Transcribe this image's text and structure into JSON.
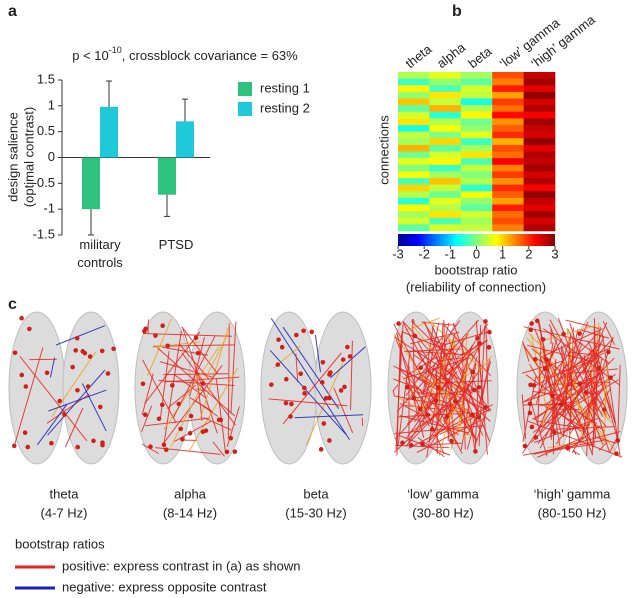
{
  "chart_data": [
    {
      "type": "bar",
      "panel": "a",
      "title": {
        "prefix": "p < 10",
        "exponent": "-10",
        "suffix": ", crossblock covariance = 63%"
      },
      "ylabel": [
        "design salience",
        "(optimal contrast)"
      ],
      "categories": [
        "military controls",
        "PTSD"
      ],
      "series": [
        {
          "name": "resting 1",
          "color": "#2ec27e",
          "values": [
            -1.0,
            -0.72
          ],
          "errors": [
            0.5,
            0.42
          ]
        },
        {
          "name": "resting 2",
          "color": "#1ec9d9",
          "values": [
            0.98,
            0.7
          ],
          "errors": [
            0.5,
            0.43
          ]
        }
      ],
      "ylim": [
        -1.5,
        1.5
      ],
      "yticks": [
        -1.5,
        -1,
        -0.5,
        0,
        0.5,
        1,
        1.5
      ]
    },
    {
      "type": "heatmap",
      "panel": "b",
      "categories": [
        "theta",
        "alpha",
        "beta",
        "‘low’ gamma",
        "‘high’ gamma"
      ],
      "ylabel": "connections",
      "values": [
        [
          0.3,
          0.6,
          0.2,
          1.8,
          2.6
        ],
        [
          -0.4,
          0.1,
          -0.2,
          1.5,
          2.8
        ],
        [
          0.8,
          -0.3,
          0.5,
          2.1,
          2.4
        ],
        [
          0.1,
          0.9,
          0.4,
          1.3,
          2.9
        ],
        [
          1.1,
          0.4,
          -0.6,
          1.9,
          2.5
        ],
        [
          -0.2,
          1.2,
          0.3,
          1.6,
          2.7
        ],
        [
          0.5,
          -0.5,
          0.8,
          2.2,
          2.3
        ],
        [
          0.9,
          0.3,
          -0.1,
          1.4,
          2.8
        ],
        [
          -0.6,
          0.7,
          0.1,
          1.7,
          2.6
        ],
        [
          0.4,
          0.0,
          0.6,
          2.0,
          2.5
        ],
        [
          0.2,
          1.0,
          -0.4,
          1.2,
          2.9
        ],
        [
          1.2,
          -0.2,
          0.2,
          1.8,
          2.4
        ],
        [
          -0.1,
          0.5,
          0.9,
          1.6,
          2.7
        ],
        [
          0.6,
          0.8,
          -0.3,
          2.3,
          2.6
        ],
        [
          0.0,
          -0.4,
          0.4,
          1.5,
          2.8
        ],
        [
          0.7,
          0.2,
          0.0,
          1.9,
          2.5
        ],
        [
          -0.3,
          1.1,
          0.3,
          1.4,
          2.7
        ],
        [
          1.0,
          0.4,
          -0.5,
          2.0,
          2.3
        ],
        [
          0.3,
          -0.1,
          0.7,
          1.7,
          2.9
        ],
        [
          -0.5,
          0.6,
          0.1,
          1.3,
          2.6
        ],
        [
          0.8,
          0.3,
          -0.2,
          2.1,
          2.4
        ],
        [
          0.2,
          0.9,
          0.5,
          1.6,
          2.8
        ],
        [
          0.5,
          -0.3,
          0.2,
          1.8,
          2.5
        ],
        [
          -0.2,
          0.5,
          0.4,
          1.5,
          2.7
        ]
      ],
      "zlim": [
        -3,
        3
      ],
      "zticks": [
        -3,
        -2,
        -1,
        0,
        1,
        2,
        3
      ],
      "colorbar_label": [
        "bootstrap ratio",
        "(reliability of connection)"
      ]
    }
  ],
  "panel_c": {
    "label": "c",
    "brains": [
      {
        "name": "theta",
        "range": "(4-7 Hz)"
      },
      {
        "name": "alpha",
        "range": "(8-14 Hz)"
      },
      {
        "name": "beta",
        "range": "(15-30 Hz)"
      },
      {
        "name": "‘low’ gamma",
        "range": "(30-80 Hz)"
      },
      {
        "name": "‘high’ gamma",
        "range": "(80-150 Hz)"
      }
    ],
    "legend": {
      "title": "bootstrap ratios",
      "items": [
        {
          "color": "#e8231f",
          "text": "positive: express contrast in (a) as shown"
        },
        {
          "color": "#1a1fb5",
          "text": "negative: express opposite contrast"
        }
      ]
    }
  }
}
